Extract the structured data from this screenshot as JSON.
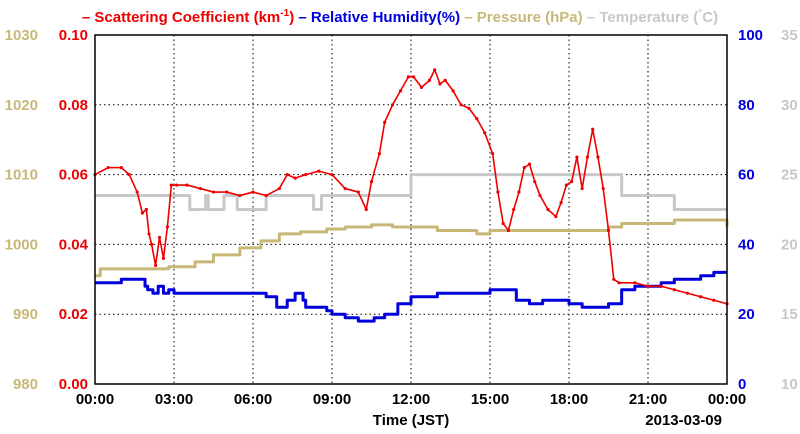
{
  "chart_data": {
    "type": "line",
    "title": "",
    "date_label": "2013-03-09",
    "xlabel": "Time (JST)",
    "x_range_hours": [
      0,
      24
    ],
    "x_ticks": [
      "00:00",
      "03:00",
      "06:00",
      "09:00",
      "12:00",
      "15:00",
      "18:00",
      "21:00",
      "00:00"
    ],
    "grid": true,
    "legend_position": "top",
    "axes": {
      "scattering": {
        "side": "left-inner",
        "ylim": [
          0,
          0.1
        ],
        "ticks": [
          "0.00",
          "0.02",
          "0.04",
          "0.06",
          "0.08",
          "0.10"
        ],
        "color": "#ee0000"
      },
      "pressure": {
        "side": "left-outer",
        "ylim": [
          980,
          1030
        ],
        "ticks": [
          "980",
          "990",
          "1000",
          "1010",
          "1020",
          "1030"
        ],
        "color": "#c8b878"
      },
      "humidity": {
        "side": "right-inner",
        "ylim": [
          0,
          100
        ],
        "ticks": [
          "0",
          "20",
          "40",
          "60",
          "80",
          "100"
        ],
        "color": "#0000dd"
      },
      "temperature": {
        "side": "right-outer",
        "ylim": [
          10,
          35
        ],
        "ticks": [
          "10",
          "15",
          "20",
          "25",
          "30",
          "35"
        ],
        "color": "#c8c8c8"
      }
    },
    "series": [
      {
        "name": "Scattering Coefficient (km-1)",
        "axis": "scattering",
        "color": "#ee0000",
        "markers": true,
        "x": [
          0,
          0.5,
          1,
          1.3,
          1.6,
          1.8,
          1.95,
          2.05,
          2.15,
          2.3,
          2.45,
          2.6,
          2.75,
          2.9,
          3.1,
          3.5,
          4,
          4.5,
          5,
          5.5,
          6,
          6.5,
          7,
          7.3,
          7.6,
          8,
          8.5,
          9,
          9.5,
          10,
          10.3,
          10.5,
          10.8,
          11,
          11.3,
          11.6,
          11.9,
          12.1,
          12.4,
          12.7,
          12.9,
          13.1,
          13.3,
          13.6,
          13.9,
          14.2,
          14.5,
          14.8,
          15.1,
          15.3,
          15.5,
          15.7,
          15.9,
          16.1,
          16.3,
          16.5,
          16.7,
          16.9,
          17.2,
          17.5,
          17.7,
          17.9,
          18.1,
          18.3,
          18.5,
          18.7,
          18.9,
          19.1,
          19.3,
          19.5,
          19.7,
          19.9,
          20.5,
          21,
          21.5,
          22,
          22.5,
          23,
          23.5,
          24
        ],
        "values": [
          0.06,
          0.062,
          0.062,
          0.06,
          0.055,
          0.049,
          0.05,
          0.043,
          0.04,
          0.034,
          0.042,
          0.036,
          0.045,
          0.057,
          0.057,
          0.057,
          0.056,
          0.055,
          0.055,
          0.054,
          0.055,
          0.054,
          0.056,
          0.06,
          0.059,
          0.06,
          0.061,
          0.06,
          0.056,
          0.055,
          0.05,
          0.058,
          0.066,
          0.075,
          0.08,
          0.084,
          0.088,
          0.088,
          0.085,
          0.087,
          0.09,
          0.086,
          0.087,
          0.084,
          0.08,
          0.079,
          0.076,
          0.072,
          0.066,
          0.055,
          0.046,
          0.044,
          0.05,
          0.055,
          0.062,
          0.063,
          0.058,
          0.054,
          0.05,
          0.048,
          0.052,
          0.057,
          0.058,
          0.065,
          0.056,
          0.065,
          0.073,
          0.065,
          0.056,
          0.044,
          0.03,
          0.029,
          0.029,
          0.028,
          0.028,
          0.027,
          0.026,
          0.025,
          0.024,
          0.023
        ]
      },
      {
        "name": "Relative Humidity(%)",
        "axis": "humidity",
        "color": "#0000dd",
        "markers": false,
        "x": [
          0,
          0.7,
          1,
          1.5,
          1.9,
          2,
          2.2,
          2.4,
          2.6,
          2.8,
          3,
          3.5,
          4,
          5,
          6,
          6.5,
          6.9,
          7,
          7.3,
          7.6,
          7.9,
          8,
          8.5,
          8.8,
          9,
          9.5,
          10,
          10.3,
          10.6,
          11,
          11.5,
          12,
          13,
          14,
          15,
          15.5,
          16,
          16.5,
          17,
          18,
          18.5,
          19,
          19.5,
          20,
          20.5,
          21,
          21.5,
          22,
          22.5,
          23,
          23.5,
          24
        ],
        "values": [
          29,
          29,
          30,
          30,
          28,
          27,
          26,
          28,
          26,
          27,
          26,
          26,
          26,
          26,
          26,
          25,
          22,
          22,
          24,
          26,
          24,
          22,
          22,
          21,
          20,
          19,
          18,
          18,
          19,
          20,
          23,
          25,
          26,
          26,
          27,
          27,
          24,
          23,
          24,
          23,
          22,
          22,
          23,
          27,
          28,
          28,
          29,
          30,
          30,
          31,
          32,
          32
        ]
      },
      {
        "name": "Pressure (hPa)",
        "axis": "pressure",
        "color": "#c8b878",
        "markers": false,
        "x": [
          0,
          0.2,
          1,
          1.8,
          2.8,
          3.8,
          4.5,
          5.5,
          6.3,
          7,
          7.8,
          8.8,
          9.5,
          10.5,
          11.3,
          12,
          13,
          14,
          14.5,
          15,
          16,
          17,
          18,
          19,
          19.5,
          20,
          21,
          22,
          22.8,
          24
        ],
        "values": [
          995.5,
          996.5,
          996.5,
          996.5,
          996.8,
          997.5,
          998.5,
          999.5,
          1000.5,
          1001.5,
          1001.8,
          1002.2,
          1002.5,
          1002.8,
          1002.5,
          1002.5,
          1002.0,
          1002.0,
          1001.5,
          1002.0,
          1002.0,
          1002.0,
          1002.0,
          1002.0,
          1002.5,
          1003.0,
          1003.0,
          1003.5,
          1003.5,
          1002.5
        ]
      },
      {
        "name": "Temperature (C)",
        "axis": "temperature",
        "color": "#c8c8c8",
        "markers": false,
        "x": [
          0,
          3.5,
          3.6,
          3.9,
          4.2,
          4.3,
          4.8,
          4.9,
          5.3,
          5.4,
          6,
          6.5,
          8,
          8.3,
          8.6,
          10,
          11,
          11.5,
          12,
          15,
          19.5,
          20,
          21,
          22,
          22.5,
          24
        ],
        "values": [
          23.5,
          23.5,
          22.5,
          22.5,
          23.5,
          22.5,
          22.5,
          23.5,
          23.5,
          22.5,
          22.5,
          23.5,
          23.5,
          22.5,
          23.5,
          23.5,
          23.5,
          23.5,
          25.0,
          25.0,
          25.0,
          23.5,
          23.5,
          22.5,
          22.5,
          22.5
        ]
      }
    ],
    "legend": [
      {
        "label": "Scattering Coefficient (km",
        "sup": "-1",
        "close": ")",
        "color": "#ee0000"
      },
      {
        "label": "Relative Humidity(%)",
        "color": "#0000dd"
      },
      {
        "label": "Pressure (hPa)",
        "color": "#c8b878"
      },
      {
        "label": "Temperature (",
        "sup": "°",
        "close": "C)",
        "color": "#c8c8c8"
      }
    ]
  }
}
